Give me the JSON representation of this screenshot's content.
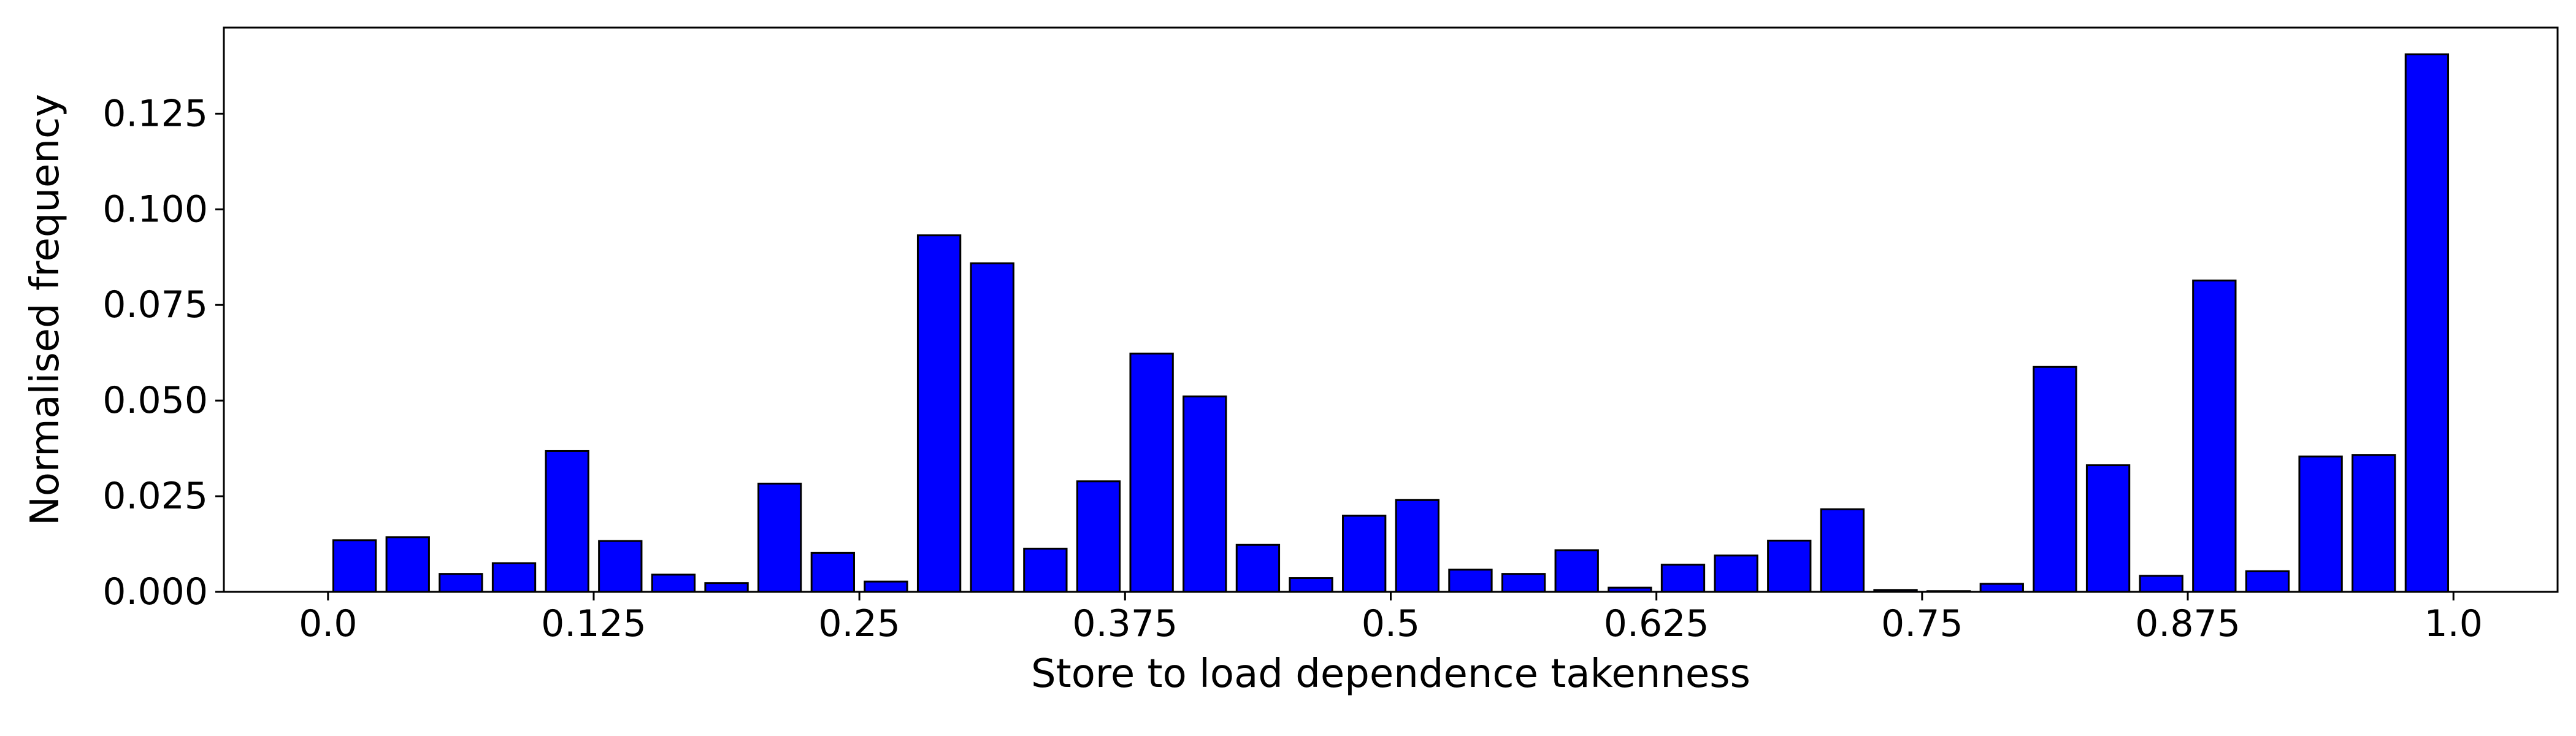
{
  "chart_data": {
    "type": "bar",
    "title": "",
    "xlabel": "Store to load dependence takenness",
    "ylabel": "Normalised frequency",
    "xlim": [
      -0.049,
      1.049
    ],
    "ylim": [
      0,
      0.1475
    ],
    "xticks": [
      0.0,
      0.125,
      0.25,
      0.375,
      0.5,
      0.625,
      0.75,
      0.875,
      1.0
    ],
    "xtick_labels": [
      "0.0",
      "0.125",
      "0.25",
      "0.375",
      "0.5",
      "0.625",
      "0.75",
      "0.875",
      "1.0"
    ],
    "yticks": [
      0.0,
      0.025,
      0.05,
      0.075,
      0.1,
      0.125
    ],
    "ytick_labels": [
      "0.000",
      "0.025",
      "0.050",
      "0.075",
      "0.100",
      "0.125"
    ],
    "bar_width": 0.02,
    "colors": {
      "bar_fill": "#0000FF",
      "bar_edge": "#000000",
      "axis": "#000000",
      "background": "#FFFFFF"
    },
    "x": [
      0.0125,
      0.0375,
      0.0625,
      0.0875,
      0.1125,
      0.1375,
      0.1625,
      0.1875,
      0.2125,
      0.2375,
      0.2625,
      0.2875,
      0.3125,
      0.3375,
      0.3625,
      0.3875,
      0.4125,
      0.4375,
      0.4625,
      0.4875,
      0.5125,
      0.5375,
      0.5625,
      0.5875,
      0.6125,
      0.6375,
      0.6625,
      0.6875,
      0.7125,
      0.7375,
      0.7625,
      0.7875,
      0.8125,
      0.8375,
      0.8625,
      0.8875,
      0.9125,
      0.9375,
      0.9625,
      0.9875
    ],
    "values": [
      0.0135,
      0.0143,
      0.0047,
      0.0075,
      0.0368,
      0.0133,
      0.0045,
      0.0023,
      0.0283,
      0.0102,
      0.0027,
      0.0932,
      0.0859,
      0.0113,
      0.0289,
      0.0623,
      0.0511,
      0.0123,
      0.0036,
      0.0199,
      0.024,
      0.0058,
      0.0047,
      0.0109,
      0.0011,
      0.0071,
      0.0095,
      0.0134,
      0.0216,
      0.0005,
      0.0002,
      0.0021,
      0.0588,
      0.0331,
      0.0042,
      0.0814,
      0.0054,
      0.0354,
      0.0358,
      0.1405
    ]
  }
}
